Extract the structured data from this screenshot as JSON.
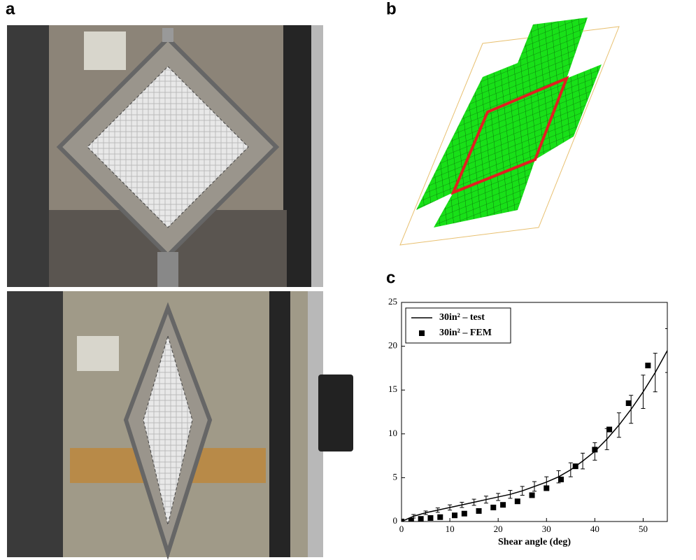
{
  "panel_labels": [
    "a",
    "b",
    "c"
  ],
  "chart_data": {
    "type": "line",
    "xlabel": "Shear angle (deg)",
    "xlim": [
      0,
      55
    ],
    "xticks": [
      0,
      10,
      20,
      30,
      40,
      50
    ],
    "ylim": [
      0,
      25
    ],
    "yticks": [
      0,
      5,
      10,
      15,
      20,
      25
    ],
    "legend": "upper left",
    "series": [
      {
        "name": "30in² – test",
        "color": "#000000",
        "marker": "line",
        "x": [
          0,
          2.5,
          5,
          7.5,
          10,
          12.5,
          15,
          17.5,
          20,
          22.5,
          25,
          27.5,
          30,
          32.5,
          35,
          37.5,
          40,
          42.5,
          45,
          47.5,
          50,
          52.5,
          55
        ],
        "values": [
          0,
          0.6,
          1.0,
          1.3,
          1.6,
          1.9,
          2.2,
          2.5,
          2.8,
          3.1,
          3.5,
          4.0,
          4.5,
          5.1,
          5.9,
          6.9,
          8.0,
          9.4,
          11.0,
          12.8,
          14.8,
          17.0,
          19.5
        ],
        "errors": [
          0,
          0.2,
          0.2,
          0.25,
          0.3,
          0.3,
          0.35,
          0.4,
          0.4,
          0.45,
          0.5,
          0.55,
          0.6,
          0.7,
          0.8,
          0.9,
          1.0,
          1.2,
          1.4,
          1.6,
          1.9,
          2.2,
          2.5
        ]
      },
      {
        "name": "30in² – FEM",
        "color": "#000000",
        "marker": "square",
        "x": [
          0,
          2,
          4,
          6,
          8,
          11,
          13,
          16,
          19,
          21,
          24,
          27,
          30,
          33,
          36,
          40,
          43,
          47,
          51
        ],
        "values": [
          0,
          0.1,
          0.3,
          0.4,
          0.5,
          0.7,
          0.9,
          1.2,
          1.6,
          1.9,
          2.3,
          3.0,
          3.8,
          4.8,
          6.3,
          8.2,
          10.5,
          13.5,
          17.8
        ]
      }
    ]
  }
}
